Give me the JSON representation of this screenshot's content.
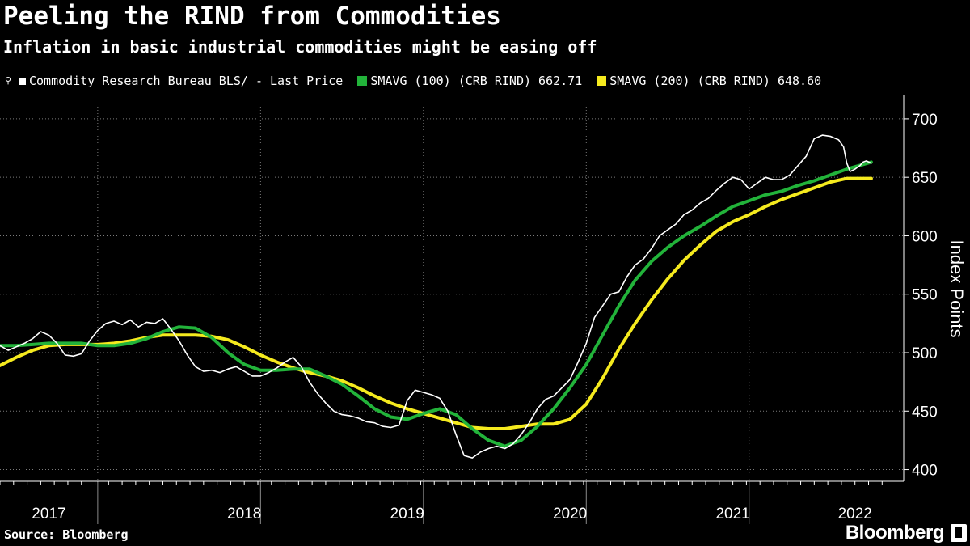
{
  "header": {
    "title": "Peeling the RIND from Commodities",
    "subtitle": "Inflation in basic industrial commodities might be easing off"
  },
  "legend": {
    "items": [
      {
        "label": "Commodity Research Bureau BLS/ - Last Price",
        "color": "#ffffff"
      },
      {
        "label": "SMAVG (100) (CRB RIND) 662.71",
        "color": "#22b33a"
      },
      {
        "label": "SMAVG (200) (CRB RIND) 648.60",
        "color": "#f5ea1e"
      }
    ]
  },
  "footer": {
    "source": "Source: Bloomberg",
    "brand": "Bloomberg"
  },
  "chart_data": {
    "type": "line",
    "title": "Peeling the RIND from Commodities",
    "subtitle": "Inflation in basic industrial commodities might be easing off",
    "ylabel": "Index Points",
    "xlabel": "",
    "ylim": [
      390,
      720
    ],
    "xlim": [
      2017.0,
      2022.45
    ],
    "yticks": [
      400,
      450,
      500,
      550,
      600,
      650,
      700
    ],
    "year_labels": [
      "2017",
      "2018",
      "2019",
      "2020",
      "2021",
      "2022"
    ],
    "year_label_positions": [
      2017.3,
      2018.5,
      2019.5,
      2020.5,
      2021.5,
      2022.25
    ],
    "year_boundaries": [
      2017.6,
      2018.6,
      2019.6,
      2020.6,
      2021.6
    ],
    "grid": true,
    "series": [
      {
        "name": "Commodity Research Bureau BLS/ - Last Price",
        "color": "#ffffff",
        "width": 1.6,
        "x": [
          2017.0,
          2017.05,
          2017.1,
          2017.15,
          2017.2,
          2017.25,
          2017.3,
          2017.35,
          2017.4,
          2017.45,
          2017.5,
          2017.55,
          2017.6,
          2017.65,
          2017.7,
          2017.75,
          2017.8,
          2017.85,
          2017.9,
          2017.95,
          2018.0,
          2018.05,
          2018.1,
          2018.15,
          2018.2,
          2018.25,
          2018.3,
          2018.35,
          2018.4,
          2018.45,
          2018.5,
          2018.55,
          2018.6,
          2018.65,
          2018.7,
          2018.75,
          2018.8,
          2018.85,
          2018.9,
          2018.95,
          2019.0,
          2019.05,
          2019.1,
          2019.15,
          2019.2,
          2019.25,
          2019.3,
          2019.35,
          2019.4,
          2019.45,
          2019.5,
          2019.55,
          2019.6,
          2019.65,
          2019.7,
          2019.75,
          2019.8,
          2019.85,
          2019.9,
          2019.95,
          2020.0,
          2020.05,
          2020.1,
          2020.15,
          2020.2,
          2020.25,
          2020.3,
          2020.35,
          2020.4,
          2020.45,
          2020.5,
          2020.55,
          2020.6,
          2020.65,
          2020.7,
          2020.75,
          2020.8,
          2020.85,
          2020.9,
          2020.95,
          2021.0,
          2021.05,
          2021.1,
          2021.15,
          2021.2,
          2021.25,
          2021.3,
          2021.35,
          2021.4,
          2021.45,
          2021.5,
          2021.55,
          2021.6,
          2021.65,
          2021.7,
          2021.75,
          2021.8,
          2021.85,
          2021.9,
          2021.95,
          2022.0,
          2022.05,
          2022.1,
          2022.15,
          2022.18,
          2022.2,
          2022.22,
          2022.25,
          2022.28,
          2022.3,
          2022.32,
          2022.35
        ],
        "values": [
          506,
          502,
          505,
          508,
          512,
          518,
          515,
          508,
          498,
          497,
          499,
          510,
          519,
          525,
          527,
          524,
          528,
          522,
          526,
          525,
          529,
          520,
          510,
          498,
          488,
          484,
          485,
          483,
          486,
          488,
          484,
          480,
          480,
          483,
          487,
          492,
          496,
          488,
          475,
          465,
          457,
          450,
          447,
          446,
          444,
          441,
          440,
          437,
          436,
          438,
          459,
          468,
          466,
          464,
          461,
          450,
          430,
          412,
          410,
          415,
          418,
          420,
          418,
          422,
          430,
          440,
          452,
          460,
          463,
          470,
          477,
          492,
          508,
          530,
          540,
          550,
          552,
          565,
          575,
          580,
          589,
          600,
          605,
          610,
          618,
          622,
          628,
          632,
          639,
          645,
          650,
          648,
          640,
          645,
          650,
          648,
          648,
          652,
          660,
          668,
          683,
          686,
          685,
          682,
          676,
          662,
          655,
          657,
          660,
          663,
          664,
          662
        ]
      },
      {
        "name": "SMAVG (100) (CRB RIND) 662.71",
        "color": "#22b33a",
        "width": 4,
        "x": [
          2017.0,
          2017.1,
          2017.2,
          2017.3,
          2017.4,
          2017.5,
          2017.6,
          2017.7,
          2017.8,
          2017.9,
          2018.0,
          2018.1,
          2018.2,
          2018.3,
          2018.4,
          2018.5,
          2018.6,
          2018.7,
          2018.8,
          2018.9,
          2019.0,
          2019.1,
          2019.2,
          2019.3,
          2019.4,
          2019.5,
          2019.6,
          2019.7,
          2019.8,
          2019.9,
          2020.0,
          2020.1,
          2020.2,
          2020.3,
          2020.4,
          2020.5,
          2020.6,
          2020.7,
          2020.8,
          2020.9,
          2021.0,
          2021.1,
          2021.2,
          2021.3,
          2021.4,
          2021.5,
          2021.6,
          2021.7,
          2021.8,
          2021.9,
          2022.0,
          2022.1,
          2022.2,
          2022.3,
          2022.35
        ],
        "values": [
          506,
          506,
          507,
          508,
          508,
          508,
          506,
          506,
          508,
          512,
          518,
          522,
          521,
          513,
          500,
          490,
          485,
          485,
          486,
          486,
          480,
          473,
          463,
          452,
          445,
          443,
          448,
          452,
          447,
          435,
          425,
          420,
          425,
          437,
          452,
          470,
          490,
          515,
          540,
          562,
          578,
          590,
          600,
          608,
          617,
          625,
          630,
          635,
          638,
          643,
          647,
          652,
          657,
          661,
          663
        ]
      },
      {
        "name": "SMAVG (200) (CRB RIND) 648.60",
        "color": "#f5ea1e",
        "width": 4,
        "x": [
          2017.0,
          2017.1,
          2017.2,
          2017.3,
          2017.4,
          2017.5,
          2017.6,
          2017.7,
          2017.8,
          2017.9,
          2018.0,
          2018.1,
          2018.2,
          2018.3,
          2018.4,
          2018.5,
          2018.6,
          2018.7,
          2018.8,
          2018.9,
          2019.0,
          2019.1,
          2019.2,
          2019.3,
          2019.4,
          2019.5,
          2019.6,
          2019.7,
          2019.8,
          2019.9,
          2020.0,
          2020.1,
          2020.2,
          2020.3,
          2020.4,
          2020.5,
          2020.6,
          2020.7,
          2020.8,
          2020.9,
          2021.0,
          2021.1,
          2021.2,
          2021.3,
          2021.4,
          2021.5,
          2021.6,
          2021.7,
          2021.8,
          2021.9,
          2022.0,
          2022.1,
          2022.2,
          2022.3,
          2022.35
        ],
        "values": [
          489,
          496,
          502,
          506,
          507,
          507,
          507,
          508,
          510,
          513,
          515,
          515,
          515,
          514,
          511,
          505,
          498,
          492,
          487,
          483,
          480,
          476,
          470,
          463,
          457,
          452,
          448,
          444,
          440,
          436,
          435,
          435,
          437,
          439,
          439,
          443,
          456,
          478,
          503,
          525,
          545,
          563,
          579,
          592,
          604,
          612,
          618,
          625,
          631,
          636,
          641,
          646,
          649,
          649,
          649
        ]
      }
    ]
  }
}
